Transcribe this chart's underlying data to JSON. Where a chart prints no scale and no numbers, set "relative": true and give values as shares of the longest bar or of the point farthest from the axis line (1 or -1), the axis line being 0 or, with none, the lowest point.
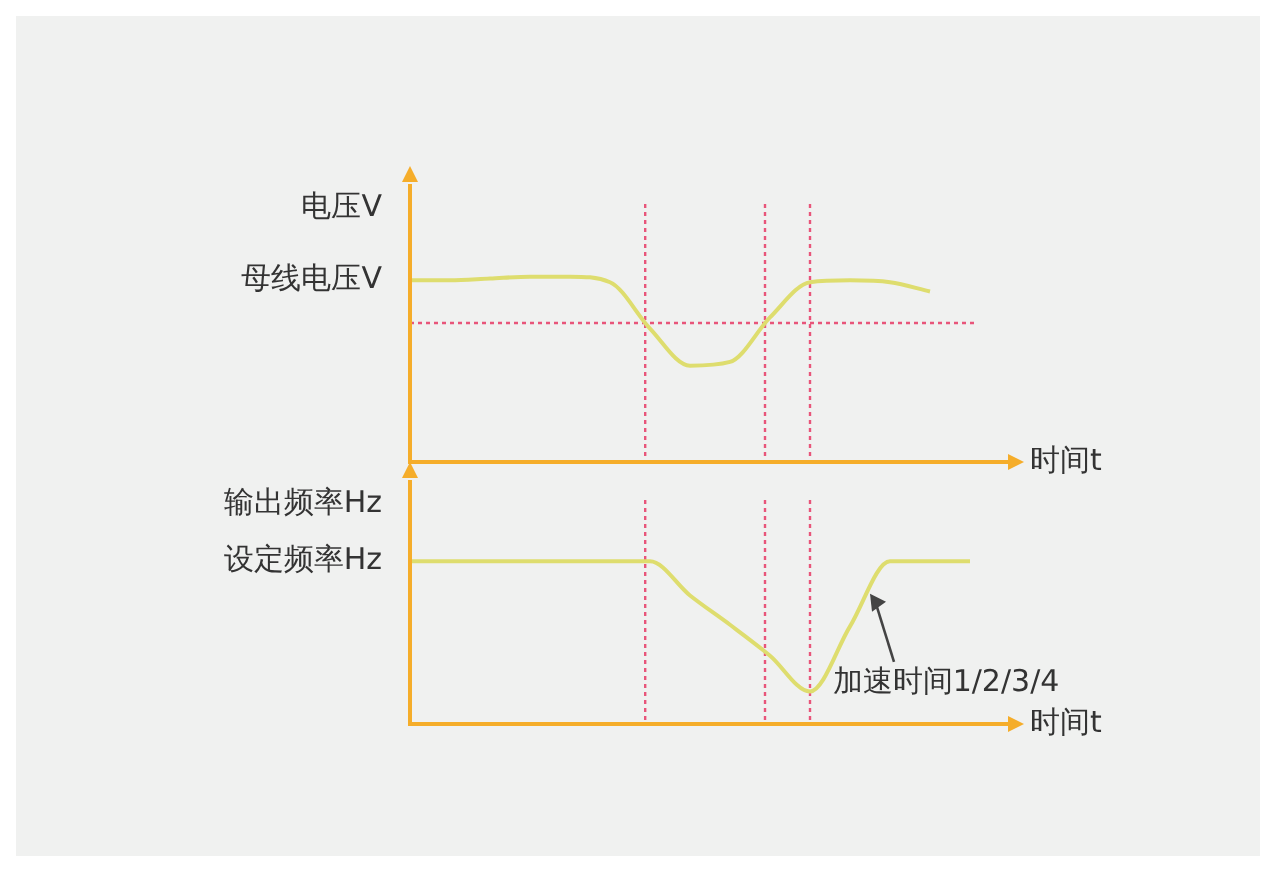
{
  "chart_data": [
    {
      "type": "line",
      "relative": true,
      "ylabel": "电压V",
      "xlabel": "时间t",
      "categories": [
        null,
        null,
        null,
        null,
        null,
        null,
        null,
        null,
        null,
        null,
        null,
        null,
        null,
        null,
        null,
        null
      ],
      "series": [
        {
          "color": "#dedd6e",
          "values": [
            0.98,
            0.98,
            0.99,
            1,
            1,
            0.97,
            0.72,
            0.52,
            0.54,
            0.78,
            0.97,
            0.98,
            0.97,
            0.92,
            null,
            null
          ]
        }
      ],
      "annotations": [
        "母线电压V"
      ],
      "ref_lines": [
        {
          "axis": "y",
          "value": 0.75,
          "color": "#e8557a",
          "line_style": "dotted"
        }
      ],
      "legend": false
    },
    {
      "type": "line",
      "relative": true,
      "ylabel": "输出频率Hz",
      "xlabel": "时间t",
      "categories": [
        null,
        null,
        null,
        null,
        null,
        null,
        null,
        null,
        null,
        null,
        null,
        null,
        null,
        null,
        null,
        null
      ],
      "series": [
        {
          "color": "#dedd6e",
          "values": [
            1,
            1,
            1,
            1,
            1,
            1,
            1,
            0.79,
            0.61,
            0.42,
            0.2,
            0.6,
            1,
            1,
            1,
            null
          ]
        }
      ],
      "annotations": [
        "设定频率Hz",
        "加速时间1/2/3/4"
      ],
      "legend": false
    }
  ]
}
